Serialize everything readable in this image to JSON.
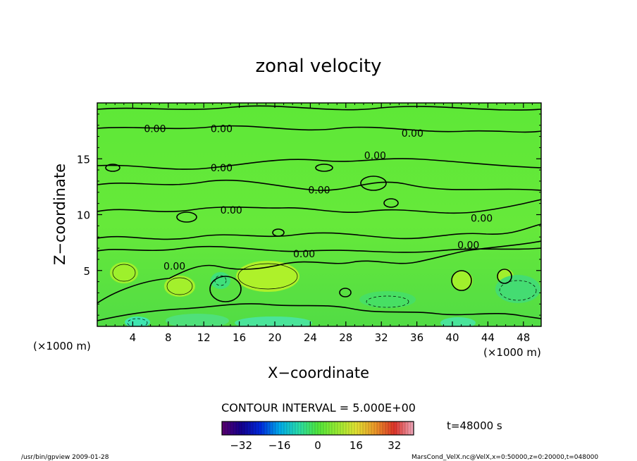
{
  "chart_data": {
    "type": "heatmap",
    "title": "zonal velocity",
    "xlabel": "X−coordinate",
    "ylabel": "Z−coordinate",
    "x_unit_left": "(×1000 m)",
    "x_unit_right": "(×1000 m)",
    "xlim": [
      0,
      50
    ],
    "ylim": [
      0,
      20
    ],
    "x_ticks": [
      4,
      8,
      12,
      16,
      20,
      24,
      28,
      32,
      36,
      40,
      44,
      48
    ],
    "y_ticks": [
      5,
      10,
      15
    ],
    "contour_interval_text": "CONTOUR INTERVAL = 5.000E+00",
    "contour_labels": [
      {
        "text": "0.00",
        "x": 6.5,
        "y": 17.7
      },
      {
        "text": "0.00",
        "x": 14.0,
        "y": 17.7
      },
      {
        "text": "0.00",
        "x": 35.5,
        "y": 17.3
      },
      {
        "text": "0.00",
        "x": 31.3,
        "y": 15.3
      },
      {
        "text": "0.00",
        "x": 14.0,
        "y": 14.2
      },
      {
        "text": "0.00",
        "x": 25.0,
        "y": 12.2
      },
      {
        "text": "0.00",
        "x": 15.1,
        "y": 10.4
      },
      {
        "text": "0.00",
        "x": 43.3,
        "y": 9.7
      },
      {
        "text": "0.00",
        "x": 41.8,
        "y": 7.3
      },
      {
        "text": "0.00",
        "x": 23.3,
        "y": 6.5
      },
      {
        "text": "0.00",
        "x": 8.7,
        "y": 5.4
      }
    ],
    "colorbar": {
      "range": [
        -40,
        40
      ],
      "ticks": [
        -32,
        -16,
        0,
        16,
        32
      ]
    },
    "time_label": "t=48000 s",
    "footer_left": "/usr/bin/gpview  2009-01-28",
    "footer_right": "MarsCond_VelX.nc@VelX,x=0:50000,z=0:20000,t=048000"
  }
}
